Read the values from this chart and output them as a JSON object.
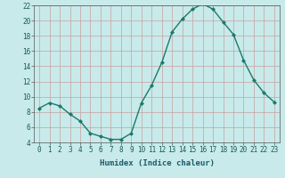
{
  "x": [
    0,
    1,
    2,
    3,
    4,
    5,
    6,
    7,
    8,
    9,
    10,
    11,
    12,
    13,
    14,
    15,
    16,
    17,
    18,
    19,
    20,
    21,
    22,
    23
  ],
  "y": [
    8.5,
    9.2,
    8.8,
    7.7,
    6.8,
    5.2,
    4.8,
    4.4,
    4.4,
    5.2,
    9.2,
    11.5,
    14.5,
    18.5,
    20.2,
    21.5,
    22.2,
    21.5,
    19.8,
    18.2,
    14.8,
    12.2,
    10.5,
    9.3
  ],
  "line_color": "#1a7a6a",
  "marker": "D",
  "markersize": 2.0,
  "linewidth": 1.0,
  "xlabel": "Humidex (Indice chaleur)",
  "ylim": [
    4,
    22
  ],
  "xlim": [
    -0.5,
    23.5
  ],
  "yticks": [
    4,
    6,
    8,
    10,
    12,
    14,
    16,
    18,
    20,
    22
  ],
  "xticks": [
    0,
    1,
    2,
    3,
    4,
    5,
    6,
    7,
    8,
    9,
    10,
    11,
    12,
    13,
    14,
    15,
    16,
    17,
    18,
    19,
    20,
    21,
    22,
    23
  ],
  "grid_color": "#c8a0a0",
  "bg_color": "#c8eaea",
  "tick_fontsize": 5.5,
  "xlabel_fontsize": 6.5
}
